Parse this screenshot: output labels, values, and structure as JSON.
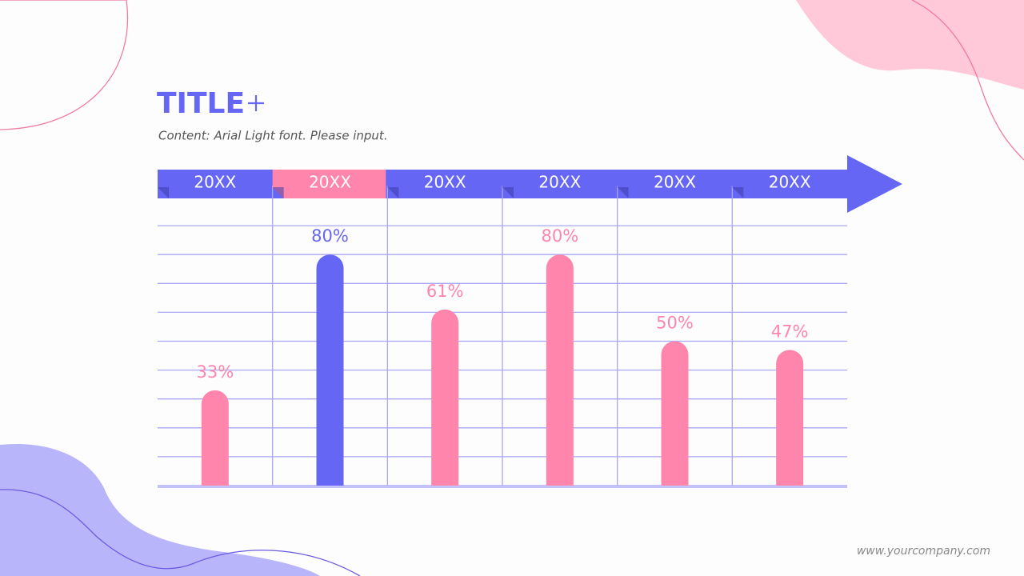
{
  "chart_data": {
    "type": "bar",
    "title": "TITLE",
    "subtitle": "Content: Arial Light font. Please input.",
    "categories": [
      "20XX",
      "20XX",
      "20XX",
      "20XX",
      "20XX",
      "20XX"
    ],
    "values": [
      33,
      80,
      61,
      80,
      50,
      47
    ],
    "value_labels": [
      "33%",
      "80%",
      "61%",
      "80%",
      "50%",
      "47%"
    ],
    "colors": [
      "#ff85ad",
      "#6666f5",
      "#ff85ad",
      "#ff85ad",
      "#ff85ad",
      "#ff85ad"
    ],
    "header_colors": [
      "#6666f5",
      "#ff85ad",
      "#6666f5",
      "#6666f5",
      "#6666f5",
      "#6666f5"
    ],
    "ylim": [
      0,
      100
    ],
    "yticks": [
      0,
      10,
      20,
      30,
      40,
      50,
      60,
      70,
      80,
      90
    ],
    "grid": true
  },
  "footer": "www.yourcompany.com"
}
